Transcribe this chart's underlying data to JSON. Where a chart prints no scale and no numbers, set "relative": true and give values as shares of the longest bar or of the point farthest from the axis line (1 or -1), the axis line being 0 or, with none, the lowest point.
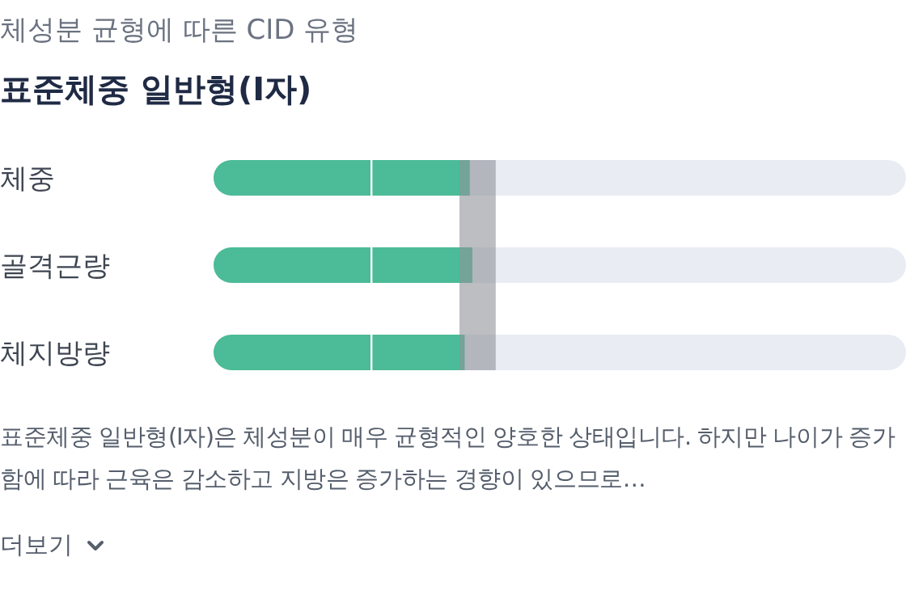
{
  "chart_data": {
    "type": "bar",
    "orientation": "horizontal",
    "relative": true,
    "subtitle": "체성분 균형에 따른 CID 유형",
    "title": "표준체중 일반형(I자)",
    "categories": [
      "체중",
      "골격근량",
      "체지방량"
    ],
    "values": [
      0.99,
      1,
      0.97
    ],
    "color": "#4cbb97",
    "bands": [
      {
        "axis": "x",
        "from": 0.95,
        "to": 1.09,
        "color": "#8f9399"
      }
    ],
    "ref_lines": [
      {
        "axis": "x",
        "value": 0.61,
        "color": "#ffffff"
      }
    ],
    "annotations": [
      "표준체중 일반형(I자)은 체성분이 매우 균형적인 양호한 상태입니다. 하지만 나이가 증가함에 따라 근육은 감소하고 지방은 증가하는 경향이 있으므로…",
      "더보기"
    ],
    "data_labels": false
  }
}
